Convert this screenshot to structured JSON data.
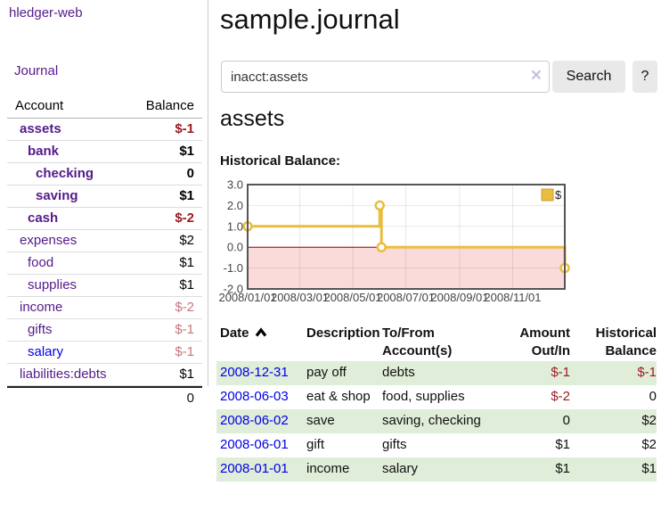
{
  "app": {
    "brand": "hledger-web"
  },
  "sidebar": {
    "nav_journal": "Journal",
    "accounts_table": {
      "headers": {
        "account": "Account",
        "balance": "Balance"
      },
      "rows": [
        {
          "name": "assets",
          "depth": 1,
          "balance": "$-1",
          "bold": true,
          "negative": "strong"
        },
        {
          "name": "bank",
          "depth": 2,
          "balance": "$1",
          "bold": true
        },
        {
          "name": "checking",
          "depth": 3,
          "balance": "0",
          "bold": true
        },
        {
          "name": "saving",
          "depth": 3,
          "balance": "$1",
          "bold": true
        },
        {
          "name": "cash",
          "depth": 2,
          "balance": "$-2",
          "bold": true,
          "negative": "strong"
        },
        {
          "name": "expenses",
          "depth": 1,
          "balance": "$2"
        },
        {
          "name": "food",
          "depth": 2,
          "balance": "$1"
        },
        {
          "name": "supplies",
          "depth": 2,
          "balance": "$1"
        },
        {
          "name": "income",
          "depth": 1,
          "balance": "$-2",
          "negative": "soft"
        },
        {
          "name": "gifts",
          "depth": 2,
          "balance": "$-1",
          "negative": "soft"
        },
        {
          "name": "salary",
          "depth": 2,
          "balance": "$-1",
          "negative": "soft",
          "link_style": "unvisited"
        },
        {
          "name": "liabilities:debts",
          "depth": 1,
          "balance": "$1"
        }
      ],
      "total": "0"
    }
  },
  "header": {
    "title": "sample.journal"
  },
  "search": {
    "value": "inacct:assets",
    "clear_icon": "×",
    "button_label": "Search",
    "help_label": "?"
  },
  "account_page": {
    "heading": "assets",
    "chart_label": "Historical Balance:"
  },
  "chart_data": {
    "type": "line",
    "step": true,
    "title": "Historical Balance",
    "series": [
      {
        "name": "$",
        "color": "#e9bd3e",
        "points": [
          [
            "2008-01-01",
            1.0
          ],
          [
            "2008-06-01",
            2.0
          ],
          [
            "2008-06-03",
            0.0
          ],
          [
            "2008-12-31",
            -1.0
          ]
        ]
      }
    ],
    "x_range": [
      "2008-01-01",
      "2008-12-31"
    ],
    "ylim": [
      -2.0,
      3.0
    ],
    "y_ticks": [
      3.0,
      2.0,
      1.0,
      0.0,
      -1.0,
      -2.0
    ],
    "x_ticks": [
      {
        "date": "2008-01-01",
        "label": "2008/01/01"
      },
      {
        "date": "2008-03-01",
        "label": "2008/03/01"
      },
      {
        "date": "2008-05-01",
        "label": "2008/05/01"
      },
      {
        "date": "2008-07-01",
        "label": "2008/07/01"
      },
      {
        "date": "2008-09-01",
        "label": "2008/09/01"
      },
      {
        "date": "2008-11-01",
        "label": "2008/11/01"
      }
    ],
    "legend": {
      "label": "$",
      "position": "top-right"
    },
    "grid": true,
    "colors": {
      "negative_region": "#fbdada",
      "zero_line": "#8b0000",
      "border": "#555555",
      "grid_line": "rgba(0,0,0,0.09)",
      "legend_border": "#c7a12c"
    }
  },
  "register_table": {
    "headers": {
      "date": "Date",
      "description": "Description",
      "accounts": "To/From Account(s)",
      "amount": "Amount Out/In",
      "balance": "Historical Balance"
    },
    "sort_icon": "chevron-up",
    "rows": [
      {
        "date": "2008-12-31",
        "description": "pay off",
        "accounts": "debts",
        "amount": "$-1",
        "balance": "$-1",
        "amount_negative": true,
        "balance_negative": true
      },
      {
        "date": "2008-06-03",
        "description": "eat & shop",
        "accounts": "food, supplies",
        "amount": "$-2",
        "balance": "0",
        "amount_negative": true
      },
      {
        "date": "2008-06-02",
        "description": "save",
        "accounts": "saving, checking",
        "amount": "0",
        "balance": "$2"
      },
      {
        "date": "2008-06-01",
        "description": "gift",
        "accounts": "gifts",
        "amount": "$1",
        "balance": "$2"
      },
      {
        "date": "2008-01-01",
        "description": "income",
        "accounts": "salary",
        "amount": "$1",
        "balance": "$1"
      }
    ]
  }
}
